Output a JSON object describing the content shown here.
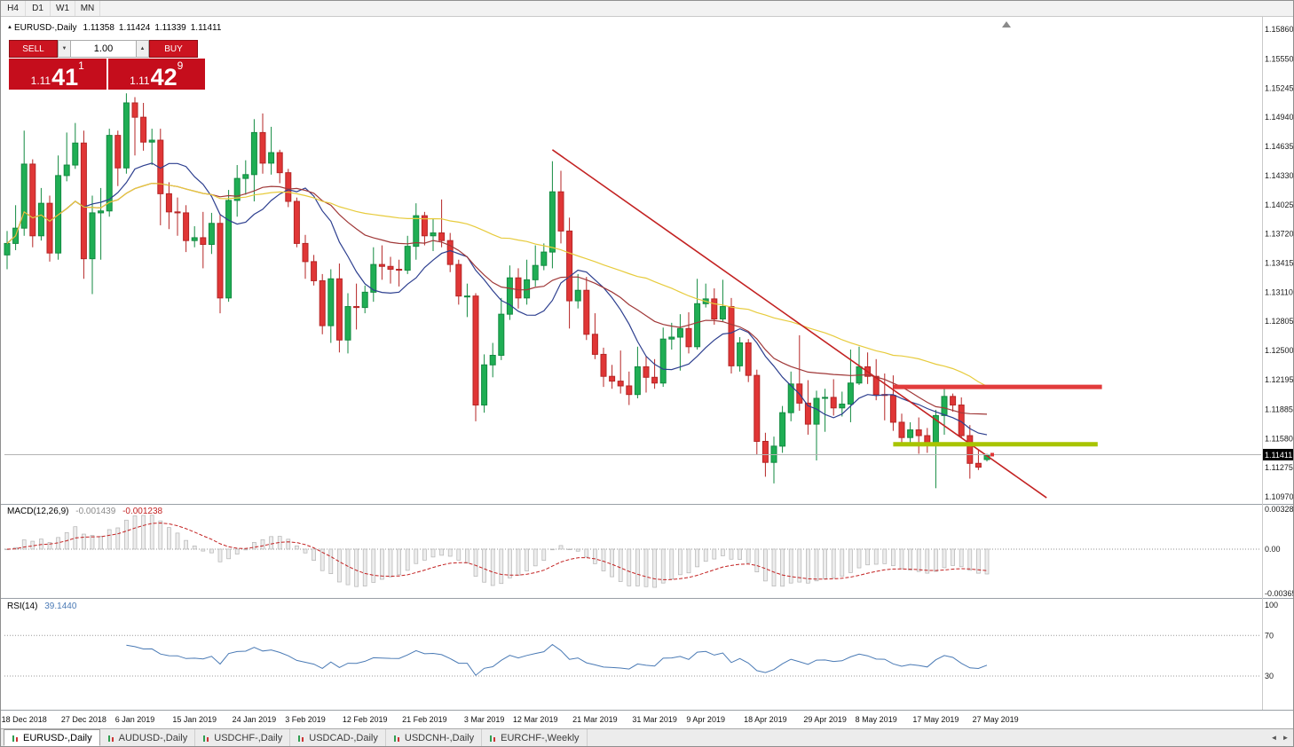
{
  "toolbar": {
    "timeframes": [
      "H4",
      "D1",
      "W1",
      "MN"
    ]
  },
  "chart_header": {
    "marker_icon": "▲",
    "symbol": "EURUSD-,Daily",
    "open": "1.11358",
    "high": "1.11424",
    "low": "1.11339",
    "close": "1.11411"
  },
  "trade_panel": {
    "sell_label": "SELL",
    "buy_label": "BUY",
    "volume": "1.00",
    "spin_down_icon": "▼",
    "spin_up_icon": "▲",
    "sell_price": {
      "prefix": "1.11",
      "main": "41",
      "sup": "1"
    },
    "buy_price": {
      "prefix": "1.11",
      "main": "42",
      "sup": "9"
    }
  },
  "indicators": {
    "macd": {
      "name": "MACD(12,26,9)",
      "value1": "-0.001439",
      "value2": "-0.001238",
      "scale": [
        "0.00328",
        "0.00",
        "-0.00365"
      ],
      "fast": 12,
      "slow": 26,
      "signal": 9,
      "ylim": [
        -0.00365,
        0.00328
      ]
    },
    "rsi": {
      "name": "RSI(14)",
      "value": "39.1440",
      "scale": [
        "100",
        "70",
        "30"
      ],
      "period": 14,
      "levels": [
        70,
        30
      ]
    }
  },
  "chart_data": {
    "type": "candlestick",
    "title": "EURUSD-,Daily",
    "ylim": [
      1.1097,
      1.1586
    ],
    "price_axis_labels": [
      "1.15860",
      "1.15550",
      "1.15245",
      "1.14940",
      "1.14635",
      "1.14330",
      "1.14025",
      "1.13720",
      "1.13415",
      "1.13110",
      "1.12805",
      "1.12500",
      "1.12195",
      "1.11885",
      "1.11580",
      "1.11275",
      "1.10970"
    ],
    "candles": [
      [
        1.135,
        1.1375,
        1.1335,
        1.1362
      ],
      [
        1.1362,
        1.1402,
        1.1355,
        1.1378
      ],
      [
        1.1378,
        1.148,
        1.137,
        1.1445
      ],
      [
        1.1445,
        1.145,
        1.1358,
        1.137
      ],
      [
        1.137,
        1.142,
        1.1365,
        1.1404
      ],
      [
        1.1404,
        1.1412,
        1.1343,
        1.1352
      ],
      [
        1.1352,
        1.1454,
        1.1345,
        1.1433
      ],
      [
        1.1433,
        1.1478,
        1.1427,
        1.1444
      ],
      [
        1.1444,
        1.1488,
        1.144,
        1.1467
      ],
      [
        1.1467,
        1.148,
        1.1325,
        1.1346
      ],
      [
        1.1346,
        1.1412,
        1.1309,
        1.1394
      ],
      [
        1.1394,
        1.142,
        1.1345,
        1.1396
      ],
      [
        1.1396,
        1.1482,
        1.139,
        1.1475
      ],
      [
        1.1475,
        1.148,
        1.1422,
        1.1441
      ],
      [
        1.1441,
        1.1519,
        1.1435,
        1.1509
      ],
      [
        1.1509,
        1.1515,
        1.1454,
        1.1494
      ],
      [
        1.1494,
        1.1509,
        1.1459,
        1.1468
      ],
      [
        1.1468,
        1.1482,
        1.1444,
        1.147
      ],
      [
        1.147,
        1.1482,
        1.1381,
        1.1414
      ],
      [
        1.1414,
        1.1426,
        1.1377,
        1.1395
      ],
      [
        1.1395,
        1.141,
        1.137,
        1.1394
      ],
      [
        1.1394,
        1.1402,
        1.1353,
        1.1365
      ],
      [
        1.1365,
        1.138,
        1.1358,
        1.1368
      ],
      [
        1.1368,
        1.1395,
        1.1336,
        1.1361
      ],
      [
        1.1361,
        1.1394,
        1.1351,
        1.1383
      ],
      [
        1.1383,
        1.1392,
        1.1289,
        1.1305
      ],
      [
        1.1305,
        1.1418,
        1.1301,
        1.1407
      ],
      [
        1.1407,
        1.1444,
        1.139,
        1.143
      ],
      [
        1.143,
        1.1449,
        1.1413,
        1.1434
      ],
      [
        1.1434,
        1.1492,
        1.1406,
        1.1478
      ],
      [
        1.1478,
        1.1498,
        1.1435,
        1.1446
      ],
      [
        1.1446,
        1.1484,
        1.1434,
        1.1457
      ],
      [
        1.1457,
        1.146,
        1.1425,
        1.1436
      ],
      [
        1.1436,
        1.144,
        1.14,
        1.1406
      ],
      [
        1.1406,
        1.141,
        1.1358,
        1.1362
      ],
      [
        1.1362,
        1.1371,
        1.1325,
        1.1343
      ],
      [
        1.1343,
        1.135,
        1.1318,
        1.1323
      ],
      [
        1.1323,
        1.133,
        1.1267,
        1.1276
      ],
      [
        1.1276,
        1.1335,
        1.1258,
        1.1325
      ],
      [
        1.1325,
        1.1341,
        1.1248,
        1.1261
      ],
      [
        1.1261,
        1.131,
        1.1247,
        1.1296
      ],
      [
        1.1296,
        1.132,
        1.1272,
        1.1295
      ],
      [
        1.1295,
        1.1318,
        1.1289,
        1.1311
      ],
      [
        1.1311,
        1.1358,
        1.1301,
        1.134
      ],
      [
        1.134,
        1.136,
        1.1324,
        1.1338
      ],
      [
        1.1338,
        1.1348,
        1.132,
        1.1335
      ],
      [
        1.1335,
        1.1345,
        1.1317,
        1.1334
      ],
      [
        1.1334,
        1.137,
        1.133,
        1.1359
      ],
      [
        1.1359,
        1.1404,
        1.1345,
        1.1391
      ],
      [
        1.1391,
        1.1395,
        1.136,
        1.137
      ],
      [
        1.137,
        1.1388,
        1.1354,
        1.1373
      ],
      [
        1.1373,
        1.1408,
        1.1358,
        1.1365
      ],
      [
        1.1365,
        1.1373,
        1.1332,
        1.134
      ],
      [
        1.134,
        1.1345,
        1.1298,
        1.1307
      ],
      [
        1.1307,
        1.132,
        1.1285,
        1.1307
      ],
      [
        1.1307,
        1.131,
        1.1176,
        1.1193
      ],
      [
        1.1193,
        1.1246,
        1.1185,
        1.1235
      ],
      [
        1.1235,
        1.1258,
        1.1222,
        1.1245
      ],
      [
        1.1245,
        1.1305,
        1.124,
        1.1288
      ],
      [
        1.1288,
        1.1339,
        1.1282,
        1.1326
      ],
      [
        1.1326,
        1.1336,
        1.1294,
        1.1305
      ],
      [
        1.1305,
        1.1345,
        1.1298,
        1.1324
      ],
      [
        1.1324,
        1.136,
        1.1317,
        1.1339
      ],
      [
        1.1339,
        1.1362,
        1.1334,
        1.1353
      ],
      [
        1.1353,
        1.1448,
        1.1336,
        1.1416
      ],
      [
        1.1416,
        1.1438,
        1.1362,
        1.1375
      ],
      [
        1.1375,
        1.1389,
        1.1273,
        1.1302
      ],
      [
        1.1302,
        1.133,
        1.1294,
        1.1313
      ],
      [
        1.1313,
        1.1327,
        1.1261,
        1.1267
      ],
      [
        1.1267,
        1.1289,
        1.1241,
        1.1246
      ],
      [
        1.1246,
        1.1253,
        1.1212,
        1.1223
      ],
      [
        1.1223,
        1.1235,
        1.121,
        1.1218
      ],
      [
        1.1218,
        1.125,
        1.1205,
        1.1213
      ],
      [
        1.1213,
        1.1228,
        1.1193,
        1.1204
      ],
      [
        1.1204,
        1.1254,
        1.12,
        1.1233
      ],
      [
        1.1233,
        1.1244,
        1.1206,
        1.1222
      ],
      [
        1.1222,
        1.1241,
        1.121,
        1.1216
      ],
      [
        1.1216,
        1.1274,
        1.1212,
        1.1262
      ],
      [
        1.1262,
        1.1279,
        1.1251,
        1.1264
      ],
      [
        1.1264,
        1.1288,
        1.1229,
        1.1273
      ],
      [
        1.1273,
        1.129,
        1.1247,
        1.1254
      ],
      [
        1.1254,
        1.1325,
        1.1251,
        1.1299
      ],
      [
        1.1299,
        1.132,
        1.1295,
        1.1304
      ],
      [
        1.1304,
        1.1315,
        1.1277,
        1.1283
      ],
      [
        1.1283,
        1.1324,
        1.128,
        1.1296
      ],
      [
        1.1296,
        1.1305,
        1.1226,
        1.1234
      ],
      [
        1.1234,
        1.1264,
        1.1228,
        1.1258
      ],
      [
        1.1258,
        1.1262,
        1.1217,
        1.1224
      ],
      [
        1.1224,
        1.123,
        1.1141,
        1.1155
      ],
      [
        1.1155,
        1.1164,
        1.1118,
        1.1133
      ],
      [
        1.1133,
        1.116,
        1.1111,
        1.115
      ],
      [
        1.115,
        1.1192,
        1.1143,
        1.1185
      ],
      [
        1.1185,
        1.1228,
        1.1176,
        1.1215
      ],
      [
        1.1215,
        1.1266,
        1.1187,
        1.1195
      ],
      [
        1.1195,
        1.1219,
        1.1162,
        1.1173
      ],
      [
        1.1173,
        1.1208,
        1.1135,
        1.12
      ],
      [
        1.12,
        1.121,
        1.1165,
        1.1201
      ],
      [
        1.1201,
        1.122,
        1.1182,
        1.119
      ],
      [
        1.119,
        1.1207,
        1.1181,
        1.1194
      ],
      [
        1.1194,
        1.1251,
        1.1175,
        1.1216
      ],
      [
        1.1216,
        1.1254,
        1.1214,
        1.1233
      ],
      [
        1.1233,
        1.1248,
        1.1215,
        1.1223
      ],
      [
        1.1223,
        1.1241,
        1.1198,
        1.1204
      ],
      [
        1.1204,
        1.1226,
        1.1177,
        1.1203
      ],
      [
        1.1203,
        1.1224,
        1.1166,
        1.1175
      ],
      [
        1.1175,
        1.1184,
        1.1154,
        1.1159
      ],
      [
        1.1159,
        1.1175,
        1.115,
        1.1167
      ],
      [
        1.1167,
        1.118,
        1.1142,
        1.1161
      ],
      [
        1.1161,
        1.1169,
        1.1143,
        1.1152
      ],
      [
        1.1152,
        1.1188,
        1.1106,
        1.1182
      ],
      [
        1.1182,
        1.1212,
        1.1162,
        1.1202
      ],
      [
        1.1202,
        1.1205,
        1.1186,
        1.1193
      ],
      [
        1.1193,
        1.1201,
        1.1159,
        1.1161
      ],
      [
        1.1161,
        1.1172,
        1.1116,
        1.1132
      ],
      [
        1.1132,
        1.1146,
        1.1125,
        1.1128
      ],
      [
        1.1136,
        1.1142,
        1.1134,
        1.1141
      ]
    ],
    "moving_averages": [
      {
        "period": 10,
        "color": "#2d3f8f"
      },
      {
        "period": 25,
        "color": "#a03838"
      },
      {
        "period": 50,
        "color": "#e7cb3c"
      }
    ],
    "objects": {
      "trendline": {
        "from_index": 64,
        "from_price": 1.146,
        "to_index": 122,
        "to_price": 1.1096
      },
      "resistance_line": {
        "price": 1.1212,
        "from_index": 104,
        "to_index": 128.5
      },
      "support_line": {
        "price": 1.1152,
        "from_index": 104,
        "to_index": 128
      }
    },
    "current_price": {
      "value": 1.11411,
      "label": "1.11411"
    },
    "date_ticks": [
      {
        "label": "18 Dec 2018",
        "i": 2
      },
      {
        "label": "27 Dec 2018",
        "i": 9
      },
      {
        "label": "6 Jan 2019",
        "i": 15
      },
      {
        "label": "15 Jan 2019",
        "i": 22
      },
      {
        "label": "24 Jan 2019",
        "i": 29
      },
      {
        "label": "3 Feb 2019",
        "i": 35
      },
      {
        "label": "12 Feb 2019",
        "i": 42
      },
      {
        "label": "21 Feb 2019",
        "i": 49
      },
      {
        "label": "3 Mar 2019",
        "i": 56
      },
      {
        "label": "12 Mar 2019",
        "i": 62
      },
      {
        "label": "21 Mar 2019",
        "i": 69
      },
      {
        "label": "31 Mar 2019",
        "i": 76
      },
      {
        "label": "9 Apr 2019",
        "i": 82
      },
      {
        "label": "18 Apr 2019",
        "i": 89
      },
      {
        "label": "29 Apr 2019",
        "i": 96
      },
      {
        "label": "8 May 2019",
        "i": 102
      },
      {
        "label": "17 May 2019",
        "i": 109
      },
      {
        "label": "27 May 2019",
        "i": 116
      }
    ]
  },
  "colors": {
    "up": "#1fae54",
    "up_border": "#128a40",
    "down": "#e03636",
    "down_border": "#b52525",
    "trend": "#c32222",
    "resistance": "#e23b3b",
    "support": "#a8c400",
    "macd_bar": "#ededed",
    "macd_bar_border": "#b3b3b3",
    "macd_signal": "#c32222",
    "rsi_line": "#4a7ab5",
    "separator": "#9aa0a6",
    "axis_text": "#1a1a1a",
    "price_line": "#b4b4b4",
    "badge_bg": "#000000",
    "badge_text": "#ffffff",
    "panel_red": "#c50d1c",
    "button_red": "#cb1420"
  },
  "tabs": [
    {
      "label": "EURUSD-,Daily",
      "active": true
    },
    {
      "label": "AUDUSD-,Daily",
      "active": false
    },
    {
      "label": "USDCHF-,Daily",
      "active": false
    },
    {
      "label": "USDCAD-,Daily",
      "active": false
    },
    {
      "label": "USDCNH-,Daily",
      "active": false
    },
    {
      "label": "EURCHF-,Weekly",
      "active": false
    }
  ],
  "tab_bar": {
    "scroll_left_icon": "◄",
    "scroll_right_icon": "►"
  }
}
